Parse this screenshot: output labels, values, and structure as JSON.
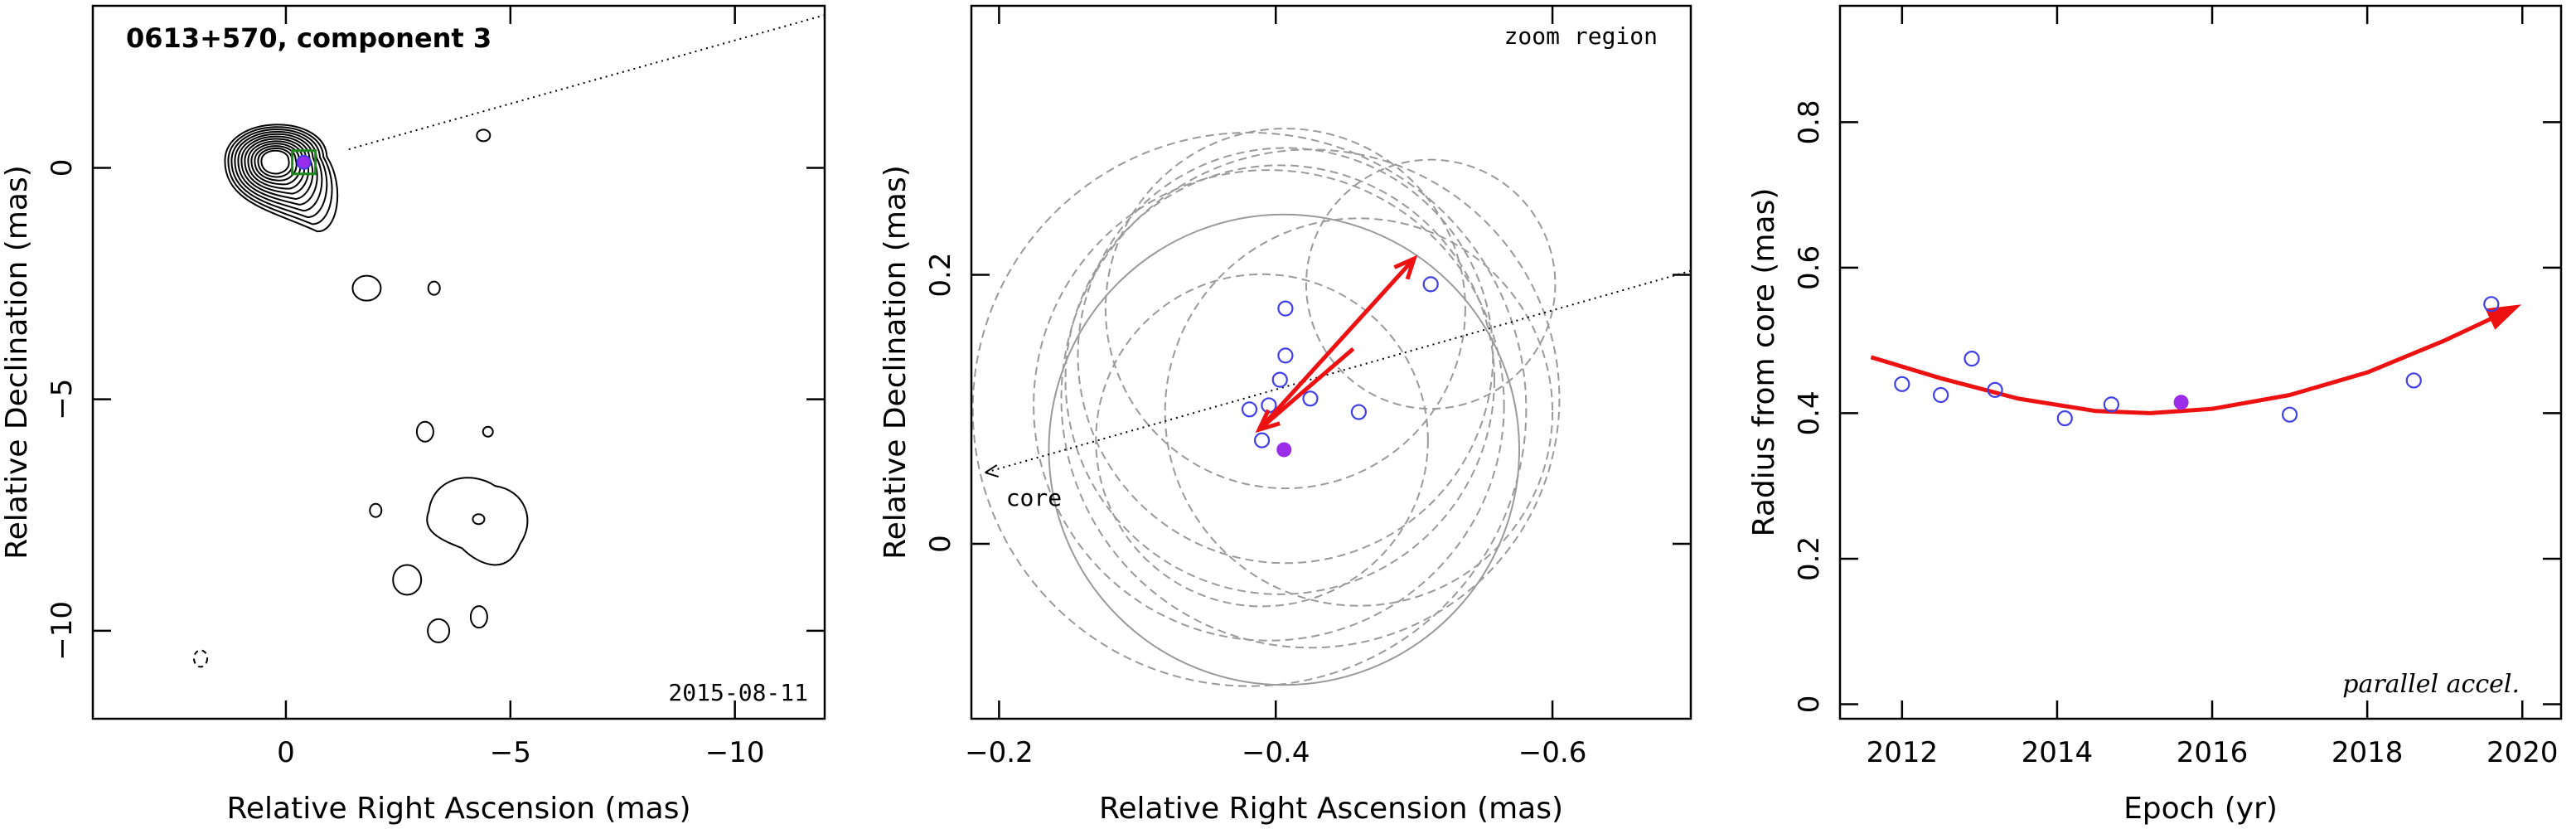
{
  "chart_data": [
    {
      "type": "contour",
      "title": "0613+570, component 3",
      "annotation": "2015-08-11",
      "xlabel": "Relative Right Ascension (mas)",
      "ylabel": "Relative Declination (mas)",
      "xlim": [
        4.3,
        -12
      ],
      "ylim": [
        -11.9,
        3.5
      ],
      "xticks": [
        0,
        -5,
        -10
      ],
      "xtick_labels": [
        "0",
        "−5",
        "−10"
      ],
      "yticks": [
        0,
        -5,
        -10
      ],
      "ytick_labels": [
        "0",
        "−5",
        "−10"
      ],
      "component_marker": [
        -0.4,
        0.12
      ],
      "core_contours": {
        "x": 0.25,
        "y": 0.15,
        "levels": 12
      },
      "island_contours": [
        [
          -1.8,
          -2.6
        ],
        [
          -3.3,
          -2.6
        ],
        [
          -4.4,
          0.7
        ],
        [
          -3.1,
          -5.7
        ],
        [
          -4.5,
          -5.7
        ],
        [
          -2.0,
          -7.4
        ],
        [
          -2.7,
          -8.9
        ],
        [
          -3.4,
          -10.0
        ],
        [
          -4.3,
          -9.7
        ],
        [
          1.9,
          -10.6
        ]
      ],
      "jet_direction_line": {
        "from": [
          -1.4,
          0.4
        ],
        "to": [
          -12,
          3.3
        ]
      },
      "faint_emission_patch": [
        -4.2,
        -7.5
      ]
    },
    {
      "type": "scatter",
      "annotation": "zoom region",
      "core_label": "core",
      "xlabel": "Relative Right Ascension (mas)",
      "ylabel": "Relative Declination (mas)",
      "xlim": [
        -0.18,
        -0.7
      ],
      "ylim": [
        -0.13,
        0.4
      ],
      "xticks": [
        -0.2,
        -0.4,
        -0.6
      ],
      "xtick_labels": [
        "−0.2",
        "−0.4",
        "−0.6"
      ],
      "yticks": [
        0,
        0.2
      ],
      "ytick_labels": [
        "0",
        "0.2"
      ],
      "points": [
        {
          "x": -0.407,
          "y": 0.175
        },
        {
          "x": -0.407,
          "y": 0.14
        },
        {
          "x": -0.403,
          "y": 0.122
        },
        {
          "x": -0.395,
          "y": 0.103
        },
        {
          "x": -0.381,
          "y": 0.1
        },
        {
          "x": -0.425,
          "y": 0.108
        },
        {
          "x": -0.39,
          "y": 0.077
        },
        {
          "x": -0.46,
          "y": 0.098
        },
        {
          "x": -0.512,
          "y": 0.193
        }
      ],
      "highlight_point": {
        "x": -0.406,
        "y": 0.07
      },
      "error_circles": [
        {
          "x": -0.407,
          "y": 0.175,
          "r": 0.13
        },
        {
          "x": -0.407,
          "y": 0.14,
          "r": 0.15
        },
        {
          "x": -0.403,
          "y": 0.122,
          "r": 0.155
        },
        {
          "x": -0.395,
          "y": 0.103,
          "r": 0.17
        },
        {
          "x": -0.381,
          "y": 0.1,
          "r": 0.2
        },
        {
          "x": -0.425,
          "y": 0.108,
          "r": 0.18
        },
        {
          "x": -0.39,
          "y": 0.077,
          "r": 0.12
        },
        {
          "x": -0.46,
          "y": 0.098,
          "r": 0.14
        },
        {
          "x": -0.512,
          "y": 0.193,
          "r": 0.09
        },
        {
          "x": -0.406,
          "y": 0.07,
          "r": 0.17
        }
      ],
      "velocity_vectors": [
        {
          "from": [
            -0.388,
            0.085
          ],
          "to": [
            -0.5,
            0.212
          ]
        },
        {
          "from": [
            -0.456,
            0.145
          ],
          "to": [
            -0.388,
            0.085
          ]
        }
      ],
      "jet_direction_line": {
        "from": [
          -0.7,
          0.203
        ],
        "to": [
          -0.19,
          0.053
        ]
      }
    },
    {
      "type": "scatter",
      "annotation": "parallel accel.",
      "xlabel": "Epoch (yr)",
      "ylabel": "Radius from core (mas)",
      "xlim": [
        2011.2,
        2020.5
      ],
      "ylim": [
        -0.02,
        0.96
      ],
      "xticks": [
        2012,
        2014,
        2016,
        2018,
        2020
      ],
      "xtick_labels": [
        "2012",
        "2014",
        "2016",
        "2018",
        "2020"
      ],
      "yticks": [
        0,
        0.2,
        0.4,
        0.6,
        0.8
      ],
      "ytick_labels": [
        "0",
        "0.2",
        "0.4",
        "0.6",
        "0.8"
      ],
      "points": [
        {
          "x": 2012.0,
          "y": 0.44
        },
        {
          "x": 2012.5,
          "y": 0.425
        },
        {
          "x": 2012.9,
          "y": 0.475
        },
        {
          "x": 2013.2,
          "y": 0.432
        },
        {
          "x": 2014.1,
          "y": 0.393
        },
        {
          "x": 2014.7,
          "y": 0.412
        },
        {
          "x": 2017.0,
          "y": 0.398
        },
        {
          "x": 2018.6,
          "y": 0.445
        },
        {
          "x": 2019.6,
          "y": 0.55
        }
      ],
      "highlight_point": {
        "x": 2015.6,
        "y": 0.415
      },
      "fit_curve": {
        "x": [
          2011.6,
          2012.5,
          2013.5,
          2014.5,
          2015.2,
          2016.0,
          2017.0,
          2018.0,
          2019.0,
          2019.9
        ],
        "y": [
          0.477,
          0.448,
          0.42,
          0.403,
          0.4,
          0.406,
          0.425,
          0.456,
          0.5,
          0.545
        ]
      }
    }
  ],
  "colors": {
    "axes": "#000000",
    "contour": "#000000",
    "open_point": "#3f3fe6",
    "filled_point": "#9b2dea",
    "vector": "#ee1111",
    "error_circle": "#9a9a9a",
    "marker_box": "#1a8a1a"
  }
}
